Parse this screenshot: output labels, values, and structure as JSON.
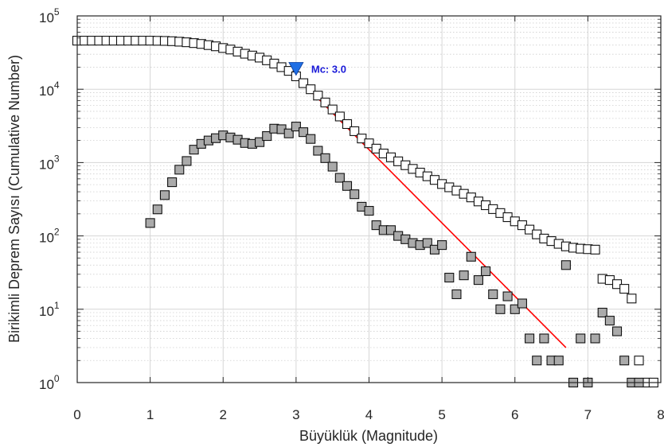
{
  "chart_data": {
    "type": "scatter",
    "xlabel": "Büyüklük (Magnitude)",
    "ylabel": "Birikimli Deprem Sayısı (Cumulative Number)",
    "xlim": [
      0,
      8
    ],
    "ylim_log10": [
      0,
      5
    ],
    "yscale": "log",
    "grid": true,
    "x_ticks": [
      "0",
      "1",
      "2",
      "3",
      "4",
      "5",
      "6",
      "7",
      "8"
    ],
    "y_ticks": [
      {
        "base": "10",
        "exp": "0"
      },
      {
        "base": "10",
        "exp": "1"
      },
      {
        "base": "10",
        "exp": "2"
      },
      {
        "base": "10",
        "exp": "3"
      },
      {
        "base": "10",
        "exp": "4"
      },
      {
        "base": "10",
        "exp": "5"
      }
    ],
    "series": [
      {
        "kind": "cumulative",
        "marker": "open-square",
        "color": "#ffffff",
        "points": [
          [
            0.0,
            46000
          ],
          [
            0.1,
            46000
          ],
          [
            0.2,
            46000
          ],
          [
            0.3,
            46000
          ],
          [
            0.4,
            46000
          ],
          [
            0.5,
            46000
          ],
          [
            0.6,
            46000
          ],
          [
            0.7,
            46000
          ],
          [
            0.8,
            46000
          ],
          [
            0.9,
            46000
          ],
          [
            1.0,
            46000
          ],
          [
            1.1,
            45800
          ],
          [
            1.2,
            45600
          ],
          [
            1.3,
            45200
          ],
          [
            1.4,
            44500
          ],
          [
            1.5,
            43700
          ],
          [
            1.6,
            42600
          ],
          [
            1.7,
            41500
          ],
          [
            1.8,
            40000
          ],
          [
            1.9,
            38500
          ],
          [
            2.0,
            36500
          ],
          [
            2.1,
            34800
          ],
          [
            2.2,
            32600
          ],
          [
            2.3,
            30500
          ],
          [
            2.4,
            28800
          ],
          [
            2.5,
            27000
          ],
          [
            2.6,
            24800
          ],
          [
            2.7,
            22400
          ],
          [
            2.8,
            20000
          ],
          [
            2.9,
            17800
          ],
          [
            3.0,
            15000
          ],
          [
            3.1,
            12100
          ],
          [
            3.2,
            10000
          ],
          [
            3.3,
            8200
          ],
          [
            3.4,
            6600
          ],
          [
            3.5,
            5300
          ],
          [
            3.6,
            4250
          ],
          [
            3.7,
            3350
          ],
          [
            3.8,
            2680
          ],
          [
            3.9,
            2130
          ],
          [
            4.0,
            1830
          ],
          [
            4.1,
            1550
          ],
          [
            4.2,
            1330
          ],
          [
            4.3,
            1180
          ],
          [
            4.4,
            1040
          ],
          [
            4.5,
            920
          ],
          [
            4.6,
            820
          ],
          [
            4.7,
            730
          ],
          [
            4.8,
            650
          ],
          [
            4.9,
            580
          ],
          [
            5.0,
            510
          ],
          [
            5.1,
            460
          ],
          [
            5.2,
            415
          ],
          [
            5.3,
            375
          ],
          [
            5.4,
            335
          ],
          [
            5.5,
            295
          ],
          [
            5.6,
            262
          ],
          [
            5.7,
            232
          ],
          [
            5.8,
            205
          ],
          [
            5.9,
            180
          ],
          [
            6.0,
            158
          ],
          [
            6.1,
            140
          ],
          [
            6.2,
            122
          ],
          [
            6.3,
            105
          ],
          [
            6.4,
            92
          ],
          [
            6.5,
            85
          ],
          [
            6.6,
            78
          ],
          [
            6.7,
            72
          ],
          [
            6.8,
            69
          ],
          [
            6.9,
            67
          ],
          [
            7.0,
            66
          ],
          [
            7.1,
            65
          ],
          [
            7.2,
            26
          ],
          [
            7.3,
            25
          ],
          [
            7.4,
            22
          ],
          [
            7.5,
            19
          ],
          [
            7.6,
            14
          ],
          [
            7.7,
            2
          ],
          [
            7.8,
            1
          ],
          [
            7.9,
            1
          ]
        ]
      },
      {
        "kind": "non-cumulative",
        "marker": "filled-square",
        "color": "#aaaaaa",
        "points": [
          [
            1.0,
            150
          ],
          [
            1.1,
            230
          ],
          [
            1.2,
            360
          ],
          [
            1.3,
            540
          ],
          [
            1.4,
            800
          ],
          [
            1.5,
            1050
          ],
          [
            1.6,
            1500
          ],
          [
            1.7,
            1800
          ],
          [
            1.8,
            2000
          ],
          [
            1.9,
            2150
          ],
          [
            2.0,
            2350
          ],
          [
            2.1,
            2200
          ],
          [
            2.2,
            2050
          ],
          [
            2.3,
            1850
          ],
          [
            2.4,
            1800
          ],
          [
            2.5,
            1900
          ],
          [
            2.6,
            2300
          ],
          [
            2.7,
            2900
          ],
          [
            2.8,
            2850
          ],
          [
            2.9,
            2500
          ],
          [
            3.0,
            3100
          ],
          [
            3.1,
            2600
          ],
          [
            3.2,
            2100
          ],
          [
            3.3,
            1450
          ],
          [
            3.4,
            1150
          ],
          [
            3.5,
            880
          ],
          [
            3.6,
            620
          ],
          [
            3.7,
            480
          ],
          [
            3.8,
            370
          ],
          [
            3.9,
            250
          ],
          [
            4.0,
            220
          ],
          [
            4.1,
            140
          ],
          [
            4.2,
            120
          ],
          [
            4.3,
            120
          ],
          [
            4.4,
            100
          ],
          [
            4.5,
            90
          ],
          [
            4.6,
            80
          ],
          [
            4.7,
            75
          ],
          [
            4.8,
            80
          ],
          [
            4.9,
            65
          ],
          [
            5.0,
            75
          ],
          [
            5.1,
            27
          ],
          [
            5.2,
            16
          ],
          [
            5.3,
            29
          ],
          [
            5.4,
            52
          ],
          [
            5.5,
            25
          ],
          [
            5.6,
            33
          ],
          [
            5.7,
            16
          ],
          [
            5.8,
            10
          ],
          [
            5.9,
            15
          ],
          [
            6.0,
            10
          ],
          [
            6.1,
            12
          ],
          [
            6.2,
            4
          ],
          [
            6.3,
            2
          ],
          [
            6.4,
            4
          ],
          [
            6.5,
            2
          ],
          [
            6.6,
            2
          ],
          [
            6.7,
            40
          ],
          [
            6.8,
            1
          ],
          [
            6.9,
            4
          ],
          [
            7.0,
            1
          ],
          [
            7.1,
            4
          ],
          [
            7.2,
            9
          ],
          [
            7.3,
            7
          ],
          [
            7.4,
            5
          ],
          [
            7.5,
            2
          ],
          [
            7.6,
            1
          ],
          [
            7.7,
            1
          ]
        ]
      }
    ],
    "fit_line": {
      "color": "#ff0000",
      "from": [
        3.0,
        15000
      ],
      "to": [
        6.7,
        3
      ]
    },
    "mc_marker": {
      "x": 3.0,
      "y": 19000,
      "color": "#1f6fe5",
      "label": "Mc: 3.0",
      "label_color": "#1a1ad8"
    }
  }
}
